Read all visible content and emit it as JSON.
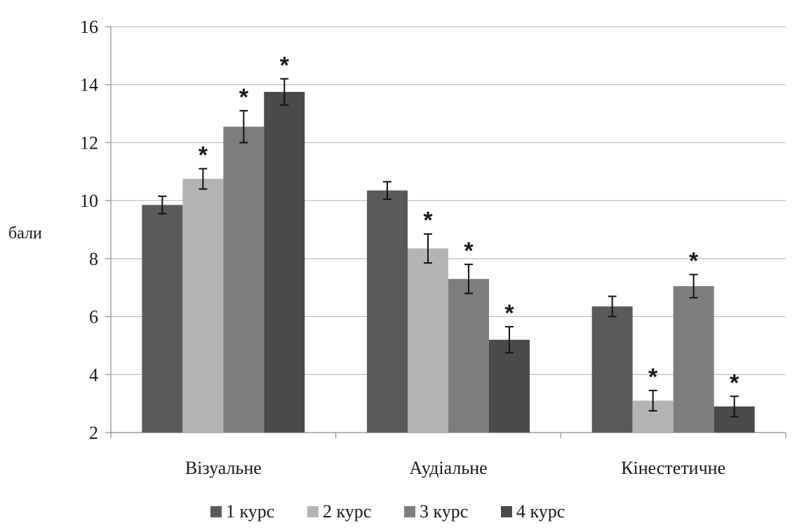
{
  "chart_data": {
    "type": "bar",
    "title": "",
    "xlabel": "",
    "ylabel": "бали",
    "ylim": [
      2,
      16
    ],
    "yticks": [
      2,
      4,
      6,
      8,
      10,
      12,
      14,
      16
    ],
    "grid": true,
    "legend_position": "bottom",
    "categories": [
      "Візуальне",
      "Аудіальне",
      "Кінестетичне"
    ],
    "series": [
      {
        "name": "1 курс",
        "color": "#5a5a5a",
        "values": [
          9.85,
          10.35,
          6.35
        ],
        "errors": [
          0.3,
          0.3,
          0.35
        ],
        "significant": [
          false,
          false,
          false
        ]
      },
      {
        "name": "2 курс",
        "color": "#b4b4b4",
        "values": [
          10.75,
          8.35,
          3.1
        ],
        "errors": [
          0.35,
          0.5,
          0.35
        ],
        "significant": [
          true,
          true,
          true
        ]
      },
      {
        "name": "3 курс",
        "color": "#7d7d7d",
        "values": [
          12.55,
          7.3,
          7.05
        ],
        "errors": [
          0.55,
          0.5,
          0.4
        ],
        "significant": [
          true,
          true,
          true
        ]
      },
      {
        "name": "4 курс",
        "color": "#4a4a4a",
        "values": [
          13.75,
          5.2,
          2.9
        ],
        "errors": [
          0.45,
          0.45,
          0.35
        ],
        "significant": [
          true,
          true,
          true
        ]
      }
    ],
    "significance_marker": "*"
  }
}
